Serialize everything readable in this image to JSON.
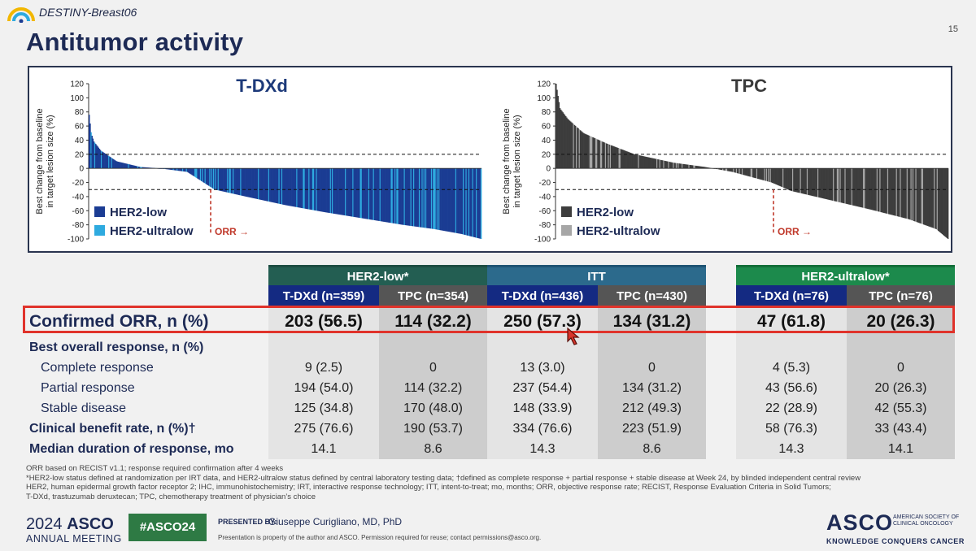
{
  "header": {
    "brand": "DESTINY-Breast06",
    "title": "Antitumor activity",
    "page_number": "15"
  },
  "chart_data": [
    {
      "type": "bar",
      "title": "T-DXd",
      "ylabel": "Best change from baseline in target lesion size (%)",
      "ylim": [
        -100,
        120
      ],
      "yticks": [
        120,
        100,
        80,
        60,
        40,
        20,
        0,
        -20,
        -40,
        -60,
        -80,
        -100
      ],
      "reference_lines": [
        20,
        -30
      ],
      "bar_count": 420,
      "profile_points": [
        [
          0,
          76
        ],
        [
          0.005,
          50
        ],
        [
          0.012,
          38
        ],
        [
          0.03,
          25
        ],
        [
          0.07,
          10
        ],
        [
          0.13,
          2
        ],
        [
          0.18,
          0
        ],
        [
          0.25,
          -5
        ],
        [
          0.32,
          -30
        ],
        [
          0.4,
          -40
        ],
        [
          0.5,
          -52
        ],
        [
          0.6,
          -62
        ],
        [
          0.7,
          -71
        ],
        [
          0.8,
          -80
        ],
        [
          0.88,
          -86
        ],
        [
          0.95,
          -93
        ],
        [
          1.0,
          -100
        ]
      ],
      "ultralow_fraction": 0.15,
      "annotation": "ORR →",
      "legend": [
        {
          "label": "HER2-low",
          "color": "#1b3c93"
        },
        {
          "label": "HER2-ultralow",
          "color": "#2eaadf"
        }
      ]
    },
    {
      "type": "bar",
      "title": "TPC",
      "ylabel": "Best change from baseline in target lesion size (%)",
      "ylim": [
        -100,
        120
      ],
      "yticks": [
        120,
        100,
        80,
        60,
        40,
        20,
        0,
        -20,
        -40,
        -60,
        -80,
        -100
      ],
      "reference_lines": [
        20,
        -30
      ],
      "bar_count": 405,
      "profile_points": [
        [
          0,
          120
        ],
        [
          0.01,
          85
        ],
        [
          0.03,
          70
        ],
        [
          0.07,
          50
        ],
        [
          0.13,
          35
        ],
        [
          0.2,
          20
        ],
        [
          0.3,
          8
        ],
        [
          0.38,
          2
        ],
        [
          0.45,
          -5
        ],
        [
          0.55,
          -20
        ],
        [
          0.6,
          -32
        ],
        [
          0.7,
          -45
        ],
        [
          0.8,
          -58
        ],
        [
          0.9,
          -72
        ],
        [
          0.97,
          -86
        ],
        [
          1.0,
          -100
        ]
      ],
      "ultralow_fraction": 0.15,
      "annotation": "ORR →",
      "legend": [
        {
          "label": "HER2-low",
          "color": "#3d3d3d"
        },
        {
          "label": "HER2-ultralow",
          "color": "#a6a6a6"
        }
      ]
    }
  ],
  "table": {
    "groups": [
      {
        "label": "HER2-low*",
        "color": "#235e52"
      },
      {
        "label": "ITT",
        "color": "#2c6a8c"
      },
      {
        "label": "HER2-ultralow*",
        "color": "#1c8a4c"
      }
    ],
    "subheaders": [
      "T-DXd (n=359)",
      "TPC (n=354)",
      "T-DXd (n=436)",
      "TPC (n=430)",
      "T-DXd (n=76)",
      "TPC (n=76)"
    ],
    "rows": {
      "orr": {
        "label": "Confirmed ORR, n (%)",
        "values": [
          "203 (56.5)",
          "114 (32.2)",
          "250 (57.3)",
          "134 (31.2)",
          "47 (61.8)",
          "20 (26.3)"
        ]
      },
      "bor": {
        "label": "Best overall response, n (%)"
      },
      "cr": {
        "label": "Complete response",
        "values": [
          "9 (2.5)",
          "0",
          "13 (3.0)",
          "0",
          "4 (5.3)",
          "0"
        ]
      },
      "pr": {
        "label": "Partial response",
        "values": [
          "194 (54.0)",
          "114 (32.2)",
          "237 (54.4)",
          "134 (31.2)",
          "43 (56.6)",
          "20 (26.3)"
        ]
      },
      "sd": {
        "label": "Stable disease",
        "values": [
          "125 (34.8)",
          "170 (48.0)",
          "148 (33.9)",
          "212 (49.3)",
          "22 (28.9)",
          "42 (55.3)"
        ]
      },
      "cbr": {
        "label": "Clinical benefit rate, n (%)†",
        "values": [
          "275 (76.6)",
          "190 (53.7)",
          "334 (76.6)",
          "223 (51.9)",
          "58 (76.3)",
          "33 (43.4)"
        ]
      },
      "dor": {
        "label": "Median duration of response, mo",
        "values": [
          "14.1",
          "8.6",
          "14.3",
          "8.6",
          "14.3",
          "14.1"
        ]
      }
    }
  },
  "footnotes": [
    "ORR based on RECIST v1.1; response required confirmation after 4 weeks",
    "*HER2-low status defined at randomization per IRT data, and HER2-ultralow status defined by central laboratory testing data; †defined as complete response + partial response + stable disease at Week 24, by blinded independent central review",
    "HER2, human epidermal growth factor receptor 2; IHC, immunohistochemistry; IRT, interactive response technology; ITT, intent-to-treat; mo, months; ORR, objective response rate; RECIST, Response Evaluation Criteria in Solid Tumors;",
    "T-DXd, trastuzumab deruxtecan; TPC, chemotherapy treatment of physician’s choice"
  ],
  "footer": {
    "year": "2024",
    "asco": "ASCO",
    "meeting": "ANNUAL MEETING",
    "hashtag": "#ASCO24",
    "presented_by": "PRESENTED BY:",
    "presenter": "Giuseppe Curigliano, MD, PhD",
    "disclaimer": "Presentation is property of the author and ASCO. Permission required for reuse; contact permissions@asco.org.",
    "logo": "ASCO",
    "society": "AMERICAN SOCIETY OF CLINICAL ONCOLOGY",
    "tagline": "KNOWLEDGE CONQUERS CANCER"
  },
  "colors": {
    "highlight": "#e0332b",
    "title": "#1d2a55"
  }
}
